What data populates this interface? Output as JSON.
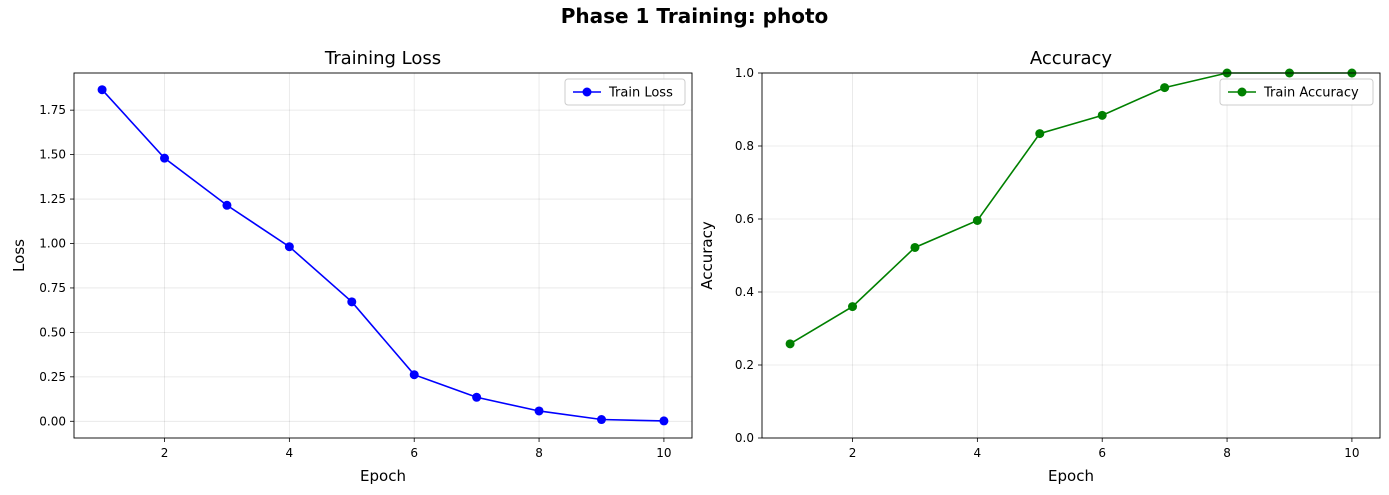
{
  "figure_title": "Phase 1 Training: photo",
  "chart_data": [
    {
      "type": "line",
      "title": "Training Loss",
      "xlabel": "Epoch",
      "ylabel": "Loss",
      "x": [
        1,
        2,
        3,
        4,
        5,
        6,
        7,
        8,
        9,
        10
      ],
      "xlim": [
        0.55,
        10.45
      ],
      "ylim": [
        -0.094,
        1.959
      ],
      "xticks": [
        2,
        4,
        6,
        8,
        10
      ],
      "xtick_labels": [
        "2",
        "4",
        "6",
        "8",
        "10"
      ],
      "yticks": [
        0,
        0.25,
        0.5,
        0.75,
        1.0,
        1.25,
        1.5,
        1.75
      ],
      "ytick_labels": [
        "0.00",
        "0.25",
        "0.50",
        "0.75",
        "1.00",
        "1.25",
        "1.50",
        "1.75"
      ],
      "grid": true,
      "legend_position": "top-right",
      "series": [
        {
          "name": "Train Loss",
          "color": "#0000ff",
          "values": [
            1.865,
            1.48,
            1.215,
            0.982,
            0.672,
            0.262,
            0.135,
            0.058,
            0.01,
            0.002
          ]
        }
      ]
    },
    {
      "type": "line",
      "title": "Accuracy",
      "xlabel": "Epoch",
      "ylabel": "Accuracy",
      "x": [
        1,
        2,
        3,
        4,
        5,
        6,
        7,
        8,
        9,
        10
      ],
      "xlim": [
        0.55,
        10.45
      ],
      "ylim": [
        0,
        1
      ],
      "xticks": [
        2,
        4,
        6,
        8,
        10
      ],
      "xtick_labels": [
        "2",
        "4",
        "6",
        "8",
        "10"
      ],
      "yticks": [
        0,
        0.2,
        0.4,
        0.6,
        0.8,
        1.0
      ],
      "ytick_labels": [
        "0.0",
        "0.2",
        "0.4",
        "0.6",
        "0.8",
        "1.0"
      ],
      "grid": true,
      "legend_position": "top-right",
      "series": [
        {
          "name": "Train Accuracy",
          "color": "#008000",
          "values": [
            0.258,
            0.36,
            0.522,
            0.596,
            0.834,
            0.884,
            0.96,
            1.0,
            1.0,
            1.0
          ]
        }
      ]
    }
  ]
}
